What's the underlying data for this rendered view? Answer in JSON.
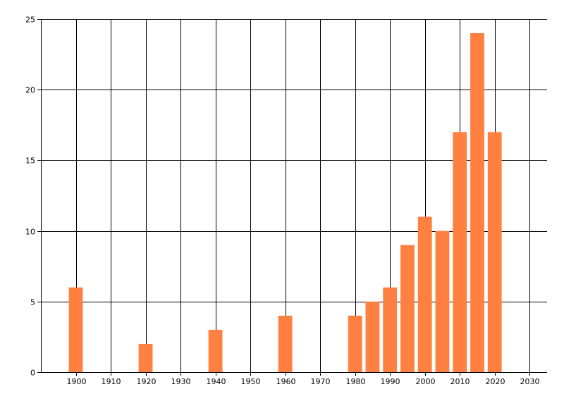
{
  "chart_data": {
    "type": "bar",
    "title": "",
    "xlabel": "",
    "ylabel": "",
    "x": [
      1900,
      1920,
      1940,
      1960,
      1980,
      1985,
      1990,
      1995,
      2000,
      2005,
      2010,
      2015,
      2020
    ],
    "values": [
      6,
      2,
      3,
      4,
      4,
      5,
      6,
      9,
      11,
      10,
      17,
      24,
      17
    ],
    "xlim": [
      1890,
      2035
    ],
    "ylim": [
      0,
      25
    ],
    "x_ticks": [
      1900,
      1910,
      1920,
      1930,
      1940,
      1950,
      1960,
      1970,
      1980,
      1990,
      2000,
      2010,
      2020,
      2030
    ],
    "y_ticks": [
      0,
      5,
      10,
      15,
      20,
      25
    ],
    "grid": true,
    "legend": "none",
    "bar_width_years": 4,
    "colors": {
      "bar": "#ff8040",
      "grid": "#000000",
      "axis": "#000000",
      "text": "#000000"
    }
  }
}
